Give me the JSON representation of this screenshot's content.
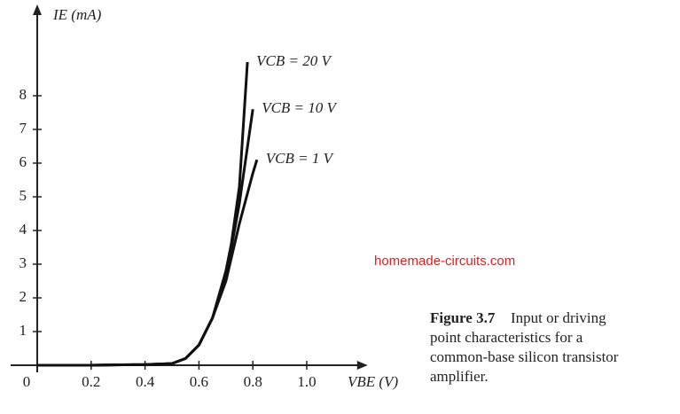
{
  "chart_data": {
    "type": "line",
    "ylabel": "IE (mA)",
    "xlabel": "VBE (V)",
    "xlim": [
      0,
      1.2
    ],
    "ylim": [
      0,
      10.5
    ],
    "xticks": [
      0,
      0.2,
      0.4,
      0.6,
      0.8,
      {
        "value": 1,
        "label": "1.0"
      }
    ],
    "yticks": [
      1,
      2,
      3,
      4,
      5,
      6,
      7,
      8
    ],
    "series": [
      {
        "name": "VCB = 20 V",
        "color": "#111111",
        "x": [
          0,
          0.2,
          0.4,
          0.5,
          0.55,
          0.6,
          0.65,
          0.7,
          0.72,
          0.75,
          0.78
        ],
        "values": [
          0,
          0,
          0.02,
          0.05,
          0.2,
          0.6,
          1.4,
          2.8,
          3.6,
          5.3,
          9.0
        ]
      },
      {
        "name": "VCB = 10 V",
        "color": "#111111",
        "x": [
          0,
          0.2,
          0.4,
          0.5,
          0.55,
          0.6,
          0.65,
          0.7,
          0.75,
          0.8
        ],
        "values": [
          0,
          0,
          0.02,
          0.05,
          0.2,
          0.6,
          1.4,
          2.6,
          4.8,
          7.6
        ]
      },
      {
        "name": "VCB = 1 V",
        "color": "#111111",
        "x": [
          0,
          0.2,
          0.4,
          0.5,
          0.55,
          0.6,
          0.65,
          0.7,
          0.75,
          0.8,
          0.815
        ],
        "values": [
          0,
          0,
          0.02,
          0.05,
          0.2,
          0.6,
          1.4,
          2.5,
          4.2,
          5.7,
          6.1
        ]
      }
    ],
    "watermark": "homemade-circuits.com",
    "caption": {
      "label": "Figure 3.7",
      "lines": [
        "Input or driving",
        "point characteristics for a",
        "common-base silicon transistor",
        "amplifier."
      ]
    }
  }
}
